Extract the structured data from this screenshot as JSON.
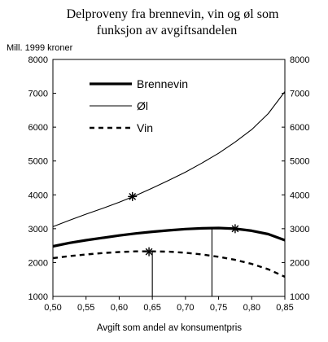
{
  "chart_data": {
    "type": "line",
    "title_lines": [
      "Delproveny fra brennevin, vin og øl som",
      "funksjon av avgiftsandelen"
    ],
    "unit_label": "Mill. 1999 kroner",
    "xlabel": "Avgift som andel av konsumentpris",
    "xlim": [
      0.5,
      0.85
    ],
    "ylim": [
      1000,
      8000
    ],
    "x_ticks": [
      "0,50",
      "0,55",
      "0,60",
      "0,65",
      "0,70",
      "0,75",
      "0,80",
      "0,85"
    ],
    "y_ticks": [
      "1000",
      "2000",
      "3000",
      "4000",
      "5000",
      "6000",
      "7000",
      "8000"
    ],
    "y_ticks_right": [
      "1000",
      "2000",
      "3000",
      "4000",
      "5000",
      "6000",
      "7000",
      "8000"
    ],
    "grid": false,
    "legend_position": "top-left",
    "series": [
      {
        "name": "Brennevin",
        "style": "thick",
        "x": [
          0.5,
          0.525,
          0.55,
          0.575,
          0.6,
          0.625,
          0.65,
          0.675,
          0.7,
          0.725,
          0.75,
          0.775,
          0.8,
          0.825,
          0.85
        ],
        "y": [
          2480,
          2580,
          2660,
          2730,
          2800,
          2860,
          2910,
          2950,
          2990,
          3010,
          3020,
          3000,
          2940,
          2840,
          2660
        ],
        "marker": {
          "x": 0.775,
          "y": 3000
        }
      },
      {
        "name": "Øl",
        "style": "thin",
        "x": [
          0.5,
          0.525,
          0.55,
          0.575,
          0.6,
          0.625,
          0.65,
          0.675,
          0.7,
          0.725,
          0.75,
          0.775,
          0.8,
          0.825,
          0.85
        ],
        "y": [
          3060,
          3250,
          3430,
          3600,
          3780,
          3980,
          4200,
          4430,
          4670,
          4940,
          5230,
          5560,
          5930,
          6400,
          7050
        ],
        "marker": {
          "x": 0.62,
          "y": 3950
        }
      },
      {
        "name": "Vin",
        "style": "dashed",
        "x": [
          0.5,
          0.525,
          0.55,
          0.575,
          0.6,
          0.625,
          0.65,
          0.675,
          0.7,
          0.725,
          0.75,
          0.775,
          0.8,
          0.825,
          0.85
        ],
        "y": [
          2130,
          2190,
          2240,
          2280,
          2310,
          2330,
          2330,
          2320,
          2290,
          2240,
          2170,
          2080,
          1960,
          1800,
          1580
        ],
        "marker": {
          "x": 0.645,
          "y": 2320
        }
      }
    ],
    "reference_lines_x": [
      0.65,
      0.74
    ]
  }
}
